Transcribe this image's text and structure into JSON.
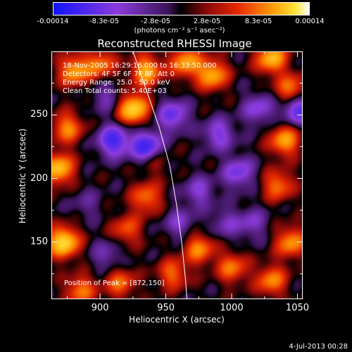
{
  "chart_data": {
    "type": "heatmap",
    "title": "Reconstructed RHESSI Image",
    "xlabel": "Heliocentric X (arcsec)",
    "ylabel": "Heliocentric Y (arcsec)",
    "xlim": [
      863,
      1054
    ],
    "ylim": [
      105,
      300
    ],
    "x_ticks": [
      "900",
      "950",
      "1000",
      "1050"
    ],
    "y_ticks": [
      "150",
      "200",
      "250"
    ],
    "colorbar": {
      "range": [
        -0.00014,
        0.00014
      ],
      "tick_labels": [
        "-0.00014",
        "-8.3e-05",
        "-2.8e-05",
        "2.8e-05",
        "8.3e-05",
        "0.00014"
      ],
      "units": "(photons cm⁻² s⁻¹ asec⁻²)"
    },
    "annotations": [
      "18-Nov-2005 16:29:16.000 to 16:33:50.000",
      "Detectors: 4F 5F 6F 7F 8F, Att 0",
      "Energy Range: 25.0 - 50.0 keV",
      "Clean    Total counts: 5.40E+03"
    ],
    "peak_label": "Position of Peak = [872,150]",
    "blobs": [
      {
        "x": 872,
        "y": 150,
        "v": 1.0
      },
      {
        "x": 868,
        "y": 208,
        "v": 0.85
      },
      {
        "x": 875,
        "y": 240,
        "v": 0.6
      },
      {
        "x": 880,
        "y": 285,
        "v": 0.7
      },
      {
        "x": 900,
        "y": 290,
        "v": 0.55
      },
      {
        "x": 935,
        "y": 285,
        "v": 0.75
      },
      {
        "x": 925,
        "y": 255,
        "v": 0.95
      },
      {
        "x": 965,
        "y": 292,
        "v": 0.7
      },
      {
        "x": 985,
        "y": 282,
        "v": 0.75
      },
      {
        "x": 1030,
        "y": 295,
        "v": 0.8
      },
      {
        "x": 1045,
        "y": 270,
        "v": 0.6
      },
      {
        "x": 1040,
        "y": 230,
        "v": 0.7
      },
      {
        "x": 1035,
        "y": 195,
        "v": 0.55
      },
      {
        "x": 1045,
        "y": 150,
        "v": 0.65
      },
      {
        "x": 1030,
        "y": 120,
        "v": 0.6
      },
      {
        "x": 1000,
        "y": 130,
        "v": 0.55
      },
      {
        "x": 975,
        "y": 145,
        "v": 0.6
      },
      {
        "x": 955,
        "y": 125,
        "v": 0.5
      },
      {
        "x": 920,
        "y": 160,
        "v": 0.45
      },
      {
        "x": 935,
        "y": 185,
        "v": 0.55
      },
      {
        "x": 940,
        "y": 215,
        "v": 0.3
      },
      {
        "x": 915,
        "y": 118,
        "v": 0.5
      },
      {
        "x": 885,
        "y": 112,
        "v": 0.55
      },
      {
        "x": 890,
        "y": 180,
        "v": -0.2
      },
      {
        "x": 910,
        "y": 230,
        "v": -0.8
      },
      {
        "x": 935,
        "y": 225,
        "v": -0.9
      },
      {
        "x": 955,
        "y": 250,
        "v": -0.6
      },
      {
        "x": 990,
        "y": 235,
        "v": -0.5
      },
      {
        "x": 1005,
        "y": 205,
        "v": -0.55
      },
      {
        "x": 1020,
        "y": 255,
        "v": -0.45
      },
      {
        "x": 1050,
        "y": 255,
        "v": -0.7
      },
      {
        "x": 975,
        "y": 190,
        "v": -0.4
      },
      {
        "x": 960,
        "y": 165,
        "v": -0.35
      },
      {
        "x": 995,
        "y": 165,
        "v": -0.3
      },
      {
        "x": 1015,
        "y": 165,
        "v": -0.35
      },
      {
        "x": 905,
        "y": 140,
        "v": -0.3
      },
      {
        "x": 905,
        "y": 265,
        "v": -0.3
      }
    ]
  },
  "limb_curve": [
    [
      925,
      300
    ],
    [
      935,
      270
    ],
    [
      945,
      240
    ],
    [
      953,
      210
    ],
    [
      958,
      180
    ],
    [
      962,
      150
    ],
    [
      965,
      120
    ],
    [
      966,
      105
    ]
  ],
  "footer_date": "4-Jul-2013 00:28"
}
